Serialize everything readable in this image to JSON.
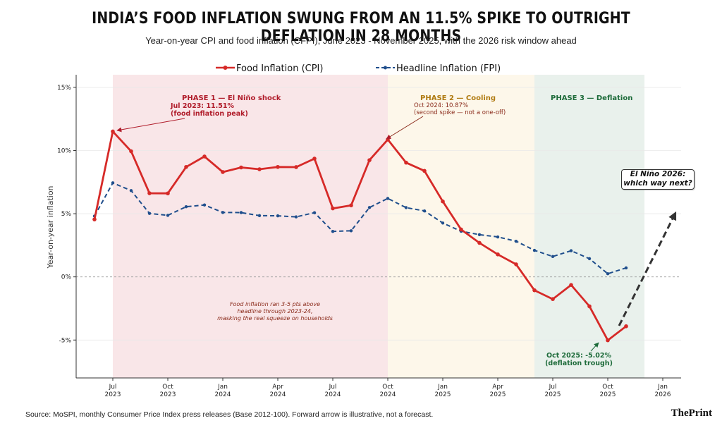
{
  "header": {
    "title": "INDIA’S FOOD INFLATION SWUNG FROM AN 11.5% SPIKE TO OUTRIGHT DEFLATION IN 28 MONTHS",
    "subtitle": "Year-on-year CPI and food inflation (CFPI), June 2023 - November 2025, with the 2026 risk window ahead"
  },
  "footer": {
    "source": "Source: MoSPI, monthly Consumer Price Index press releases (Base 2012-100). Forward arrow is illustrative, not a forecast.",
    "brand": "ThePrint"
  },
  "colors": {
    "food": "#d62a28",
    "headline": "#1f4e8c",
    "phase1_bg": "#f9e6e8",
    "phase2_bg": "#fdf7ea",
    "phase3_bg": "#e9f1ec",
    "phase1_text": "#b01c2a",
    "phase2_text": "#b07b12",
    "phase3_text": "#1d6b3a"
  },
  "annotations": {
    "phase1_label": "PHASE 1 — El Niño shock",
    "phase2_label": "PHASE 2 — Cooling",
    "phase3_label": "PHASE 3 — Deflation",
    "peak1_line1": "Jul 2023: 11.51%",
    "peak1_line2": "(food inflation peak)",
    "peak2_line1": "Oct 2024: 10.87%",
    "peak2_line2": "(second spike — not a one-off)",
    "trough_line1": "Oct 2025: -5.02%",
    "trough_line2": "(deflation trough)",
    "note_line1": "Food inflation ran 3-5 pts above",
    "note_line2": "headline through 2023-24,",
    "note_line3": "masking the real squeeze on households",
    "risk_line1": "El Niño 2026:",
    "risk_line2": "which way next?"
  },
  "chart_data": {
    "type": "line",
    "ylabel": "Year-on-year inflation",
    "xlabel": "",
    "ylim": [
      -8,
      16
    ],
    "yticks": [
      15,
      10,
      5,
      0,
      -5
    ],
    "ytick_labels": [
      "15%",
      "10%",
      "5%",
      "0%",
      "-5%"
    ],
    "xlim": [
      "2023-05",
      "2026-02"
    ],
    "xtick_labels": [
      {
        "month": "2023-07",
        "line1": "Jul",
        "line2": "2023"
      },
      {
        "month": "2023-10",
        "line1": "Oct",
        "line2": "2023"
      },
      {
        "month": "2024-01",
        "line1": "Jan",
        "line2": "2024"
      },
      {
        "month": "2024-04",
        "line1": "Apr",
        "line2": "2024"
      },
      {
        "month": "2024-07",
        "line1": "Jul",
        "line2": "2024"
      },
      {
        "month": "2024-10",
        "line1": "Oct",
        "line2": "2024"
      },
      {
        "month": "2025-01",
        "line1": "Jan",
        "line2": "2025"
      },
      {
        "month": "2025-04",
        "line1": "Apr",
        "line2": "2025"
      },
      {
        "month": "2025-07",
        "line1": "Jul",
        "line2": "2025"
      },
      {
        "month": "2025-10",
        "line1": "Oct",
        "line2": "2025"
      },
      {
        "month": "2026-01",
        "line1": "Jan",
        "line2": "2026"
      }
    ],
    "x": [
      "2023-06",
      "2023-07",
      "2023-08",
      "2023-09",
      "2023-10",
      "2023-11",
      "2023-12",
      "2024-01",
      "2024-02",
      "2024-03",
      "2024-04",
      "2024-05",
      "2024-06",
      "2024-07",
      "2024-08",
      "2024-09",
      "2024-10",
      "2024-11",
      "2024-12",
      "2025-01",
      "2025-02",
      "2025-03",
      "2025-04",
      "2025-05",
      "2025-06",
      "2025-07",
      "2025-08",
      "2025-09",
      "2025-10",
      "2025-11"
    ],
    "series": [
      {
        "name": "Food Inflation (CPI)",
        "style": "solid",
        "values": [
          4.55,
          11.51,
          9.94,
          6.62,
          6.61,
          8.7,
          9.53,
          8.3,
          8.66,
          8.52,
          8.7,
          8.69,
          9.36,
          5.42,
          5.66,
          9.24,
          10.87,
          9.04,
          8.39,
          5.97,
          3.75,
          2.69,
          1.78,
          0.99,
          -1.06,
          -1.76,
          -0.64,
          -2.33,
          -5.02,
          -3.91
        ]
      },
      {
        "name": "Headline Inflation (FPI)",
        "style": "dashed",
        "values": [
          4.81,
          7.44,
          6.83,
          5.02,
          4.87,
          5.55,
          5.69,
          5.1,
          5.09,
          4.85,
          4.83,
          4.75,
          5.08,
          3.6,
          3.65,
          5.49,
          6.21,
          5.48,
          5.22,
          4.26,
          3.61,
          3.34,
          3.16,
          2.82,
          2.1,
          1.61,
          2.07,
          1.44,
          0.25,
          0.71
        ]
      }
    ],
    "phases": [
      {
        "label": "PHASE 1 — El Niño shock",
        "start": "2023-07",
        "end": "2024-10"
      },
      {
        "label": "PHASE 2 — Cooling",
        "start": "2024-10",
        "end": "2025-06"
      },
      {
        "label": "PHASE 3 — Deflation",
        "start": "2025-06",
        "end": "2025-12"
      }
    ],
    "legend_position": "top-center",
    "zero_line": true
  }
}
